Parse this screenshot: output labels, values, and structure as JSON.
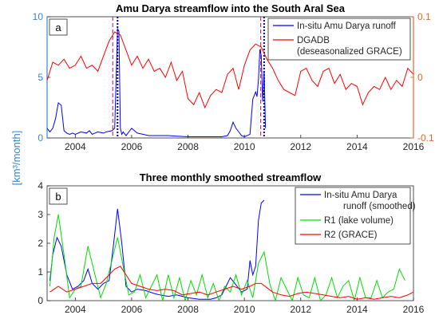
{
  "colors": {
    "blue": "#0000ff",
    "red": "#ff0000",
    "green": "#00e000",
    "navy": "#00008b",
    "purple_dash": "#d4307f",
    "left_axis": "#3a86c8",
    "right_axis": "#e06a2c"
  },
  "shared_ylabel": "[km³/month]",
  "chart_data": [
    {
      "type": "line",
      "panel_label": "a",
      "title": "Amu Darya streamflow into the South Aral Sea",
      "xlim": [
        2003,
        2016
      ],
      "xticks": [
        2004,
        2006,
        2008,
        2010,
        2012,
        2014,
        2016
      ],
      "ylim": [
        0,
        10
      ],
      "yticks": [
        0,
        5,
        10
      ],
      "y2lim": [
        -0.1,
        0.1
      ],
      "y2ticks": [
        -0.1,
        0,
        0.1
      ],
      "y2ticklabels": [
        "-0.1",
        "0",
        "0.1"
      ],
      "legend_position": "top-right",
      "vlines_dotted": [
        2005.5,
        2010.7
      ],
      "vlines_dashed": [
        2005.33,
        2010.58
      ],
      "series": [
        {
          "name": "In-situ Amu Darya runoff",
          "axis": "left",
          "color": "blue",
          "x": [
            2003.0,
            2003.1,
            2003.2,
            2003.3,
            2003.4,
            2003.5,
            2003.6,
            2003.7,
            2003.8,
            2003.9,
            2004.0,
            2004.2,
            2004.4,
            2004.5,
            2004.6,
            2004.8,
            2005.0,
            2005.1,
            2005.3,
            2005.4,
            2005.5,
            2005.55,
            2005.6,
            2005.65,
            2005.7,
            2005.8,
            2006.0,
            2006.2,
            2006.4,
            2006.6,
            2006.8,
            2007.0,
            2007.3,
            2007.6,
            2008.0,
            2008.4,
            2008.8,
            2009.0,
            2009.2,
            2009.4,
            2009.5,
            2009.6,
            2009.7,
            2009.9,
            2010.0,
            2010.2,
            2010.3,
            2010.4,
            2010.45,
            2010.5,
            2010.55,
            2010.6,
            2010.65,
            2010.7,
            2010.75
          ],
          "values": [
            0.8,
            0.5,
            0.8,
            1.6,
            2.9,
            2.7,
            0.6,
            0.4,
            0.3,
            0.4,
            0.3,
            0.5,
            0.4,
            0.6,
            0.3,
            0.5,
            0.4,
            0.5,
            0.6,
            0.8,
            9.0,
            8.8,
            0.8,
            0.3,
            0.5,
            0.2,
            0.8,
            0.4,
            0.3,
            0.2,
            0.2,
            0.2,
            0.2,
            0.15,
            0.1,
            0.1,
            0.1,
            0.1,
            0.1,
            0.2,
            0.6,
            1.3,
            0.8,
            0.2,
            0.1,
            0.3,
            3.2,
            3.8,
            3.4,
            4.8,
            7.3,
            6.8,
            3.0,
            5.5,
            0.8
          ]
        },
        {
          "name": "DGADB\n(deseasonalized GRACE)",
          "axis": "right",
          "color": "red",
          "x": [
            2003.0,
            2003.2,
            2003.4,
            2003.6,
            2003.8,
            2004.0,
            2004.2,
            2004.4,
            2004.6,
            2004.8,
            2005.0,
            2005.2,
            2005.4,
            2005.6,
            2005.8,
            2006.0,
            2006.2,
            2006.4,
            2006.6,
            2006.8,
            2007.0,
            2007.2,
            2007.4,
            2007.6,
            2007.8,
            2008.0,
            2008.2,
            2008.4,
            2008.6,
            2008.8,
            2009.0,
            2009.2,
            2009.4,
            2009.6,
            2009.8,
            2010.0,
            2010.2,
            2010.4,
            2010.6,
            2010.8,
            2011.0,
            2011.2,
            2011.4,
            2011.6,
            2011.8,
            2012.0,
            2012.2,
            2012.4,
            2012.6,
            2012.8,
            2013.0,
            2013.2,
            2013.4,
            2013.6,
            2013.8,
            2014.0,
            2014.2,
            2014.4,
            2014.6,
            2014.8,
            2015.0,
            2015.2,
            2015.4,
            2015.6,
            2015.8,
            2016.0
          ],
          "values": [
            -0.005,
            0.025,
            0.02,
            0.03,
            0.015,
            0.02,
            0.035,
            0.015,
            0.02,
            0.01,
            0.035,
            0.06,
            0.075,
            0.07,
            0.045,
            0.02,
            0.035,
            0.015,
            0.03,
            0.01,
            0.015,
            0.0,
            0.025,
            -0.005,
            0.01,
            -0.035,
            -0.045,
            -0.025,
            -0.05,
            -0.03,
            -0.02,
            -0.025,
            0.005,
            0.015,
            -0.02,
            0.02,
            0.045,
            0.055,
            0.05,
            0.03,
            0.015,
            -0.005,
            -0.02,
            -0.025,
            -0.03,
            0.01,
            0.015,
            -0.005,
            -0.015,
            0.01,
            0.015,
            -0.01,
            0.005,
            -0.02,
            -0.01,
            -0.015,
            -0.045,
            -0.025,
            -0.015,
            -0.02,
            0.0,
            -0.02,
            -0.005,
            -0.015,
            0.015,
            0.005
          ]
        }
      ]
    },
    {
      "type": "line",
      "panel_label": "b",
      "title": "Three monthly smoothed streamflow",
      "xlim": [
        2003,
        2016
      ],
      "xticks": [
        2004,
        2006,
        2008,
        2010,
        2012,
        2014,
        2016
      ],
      "ylim": [
        0,
        4
      ],
      "yticks": [
        0,
        1,
        2,
        3,
        4
      ],
      "legend_position": "top-right",
      "series": [
        {
          "name": "In-situ Amu Darya\nrunoff (smoothed)",
          "color": "blue",
          "x": [
            2003.1,
            2003.2,
            2003.35,
            2003.5,
            2003.7,
            2003.9,
            2004.1,
            2004.3,
            2004.45,
            2004.6,
            2004.8,
            2005.0,
            2005.2,
            2005.35,
            2005.5,
            2005.65,
            2005.8,
            2006.0,
            2006.2,
            2006.5,
            2006.8,
            2007.0,
            2007.3,
            2007.6,
            2008.0,
            2008.4,
            2008.8,
            2009.0,
            2009.2,
            2009.35,
            2009.5,
            2009.7,
            2009.9,
            2010.1,
            2010.2,
            2010.3,
            2010.4,
            2010.5,
            2010.6,
            2010.7
          ],
          "values": [
            0.7,
            1.6,
            2.2,
            1.9,
            0.9,
            0.4,
            0.5,
            0.7,
            1.1,
            0.6,
            0.4,
            0.6,
            0.7,
            1.9,
            3.2,
            2.0,
            0.5,
            0.3,
            0.4,
            0.35,
            0.25,
            0.2,
            0.15,
            0.2,
            0.1,
            0.05,
            0.05,
            0.1,
            0.2,
            0.5,
            0.8,
            0.55,
            0.3,
            0.4,
            1.4,
            0.9,
            1.2,
            2.8,
            3.4,
            3.5
          ]
        },
        {
          "name": "R1 (lake volume)",
          "color": "green",
          "x": [
            2003.1,
            2003.25,
            2003.4,
            2003.6,
            2003.8,
            2004.0,
            2004.2,
            2004.45,
            2004.7,
            2004.9,
            2005.1,
            2005.3,
            2005.5,
            2005.7,
            2005.9,
            2006.1,
            2006.3,
            2006.5,
            2006.7,
            2006.9,
            2007.1,
            2007.3,
            2007.5,
            2007.7,
            2007.9,
            2008.1,
            2008.3,
            2008.5,
            2008.7,
            2008.9,
            2009.1,
            2009.3,
            2009.5,
            2009.7,
            2009.9,
            2010.1,
            2010.3,
            2010.5,
            2010.7,
            2010.9,
            2011.1,
            2011.3,
            2011.5,
            2011.7,
            2011.9,
            2012.1,
            2012.3,
            2012.5,
            2012.7,
            2012.9,
            2013.1,
            2013.3,
            2013.5,
            2013.7,
            2013.9,
            2014.1,
            2014.3,
            2014.5,
            2014.7,
            2014.9,
            2015.1,
            2015.3,
            2015.5,
            2015.7
          ],
          "values": [
            0.5,
            2.2,
            3.0,
            1.6,
            0.1,
            0.4,
            0.5,
            1.9,
            0.9,
            0.1,
            0.6,
            1.4,
            2.2,
            1.2,
            0.2,
            0.3,
            0.9,
            0.1,
            0.5,
            0.9,
            0.0,
            0.9,
            0.1,
            0.8,
            0.0,
            0.7,
            0.2,
            0.9,
            0.1,
            0.6,
            0.0,
            0.5,
            0.3,
            0.9,
            0.2,
            0.7,
            0.1,
            1.3,
            1.7,
            0.6,
            0.0,
            0.8,
            0.4,
            0.0,
            0.8,
            0.2,
            0.1,
            0.8,
            0.0,
            0.2,
            0.8,
            0.1,
            0.5,
            0.7,
            0.0,
            0.8,
            0.1,
            0.1,
            0.7,
            0.1,
            0.3,
            0.4,
            1.1,
            0.7
          ]
        },
        {
          "name": "R2 (GRACE)",
          "color": "red",
          "x": [
            2003.1,
            2003.4,
            2003.7,
            2004.0,
            2004.3,
            2004.6,
            2004.9,
            2005.2,
            2005.4,
            2005.6,
            2005.8,
            2006.0,
            2006.3,
            2006.6,
            2006.9,
            2007.2,
            2007.5,
            2007.8,
            2008.1,
            2008.4,
            2008.7,
            2009.0,
            2009.3,
            2009.6,
            2009.9,
            2010.2,
            2010.4,
            2010.6,
            2010.8,
            2011.0,
            2011.3,
            2011.6,
            2011.9,
            2012.2,
            2012.5,
            2012.8,
            2013.1,
            2013.4,
            2013.7,
            2014.0,
            2014.3,
            2014.6,
            2014.9,
            2015.2,
            2015.5,
            2015.8,
            2016.0
          ],
          "values": [
            0.3,
            0.5,
            0.3,
            0.4,
            0.5,
            0.6,
            0.6,
            0.9,
            1.1,
            1.2,
            0.9,
            0.6,
            0.5,
            0.4,
            0.35,
            0.4,
            0.35,
            0.2,
            0.25,
            0.3,
            0.2,
            0.3,
            0.4,
            0.5,
            0.4,
            0.5,
            0.6,
            0.6,
            0.45,
            0.3,
            0.2,
            0.15,
            0.25,
            0.3,
            0.25,
            0.2,
            0.15,
            0.1,
            0.15,
            0.05,
            0.1,
            0.05,
            0.1,
            0.15,
            0.1,
            0.2,
            0.3
          ]
        }
      ]
    }
  ]
}
